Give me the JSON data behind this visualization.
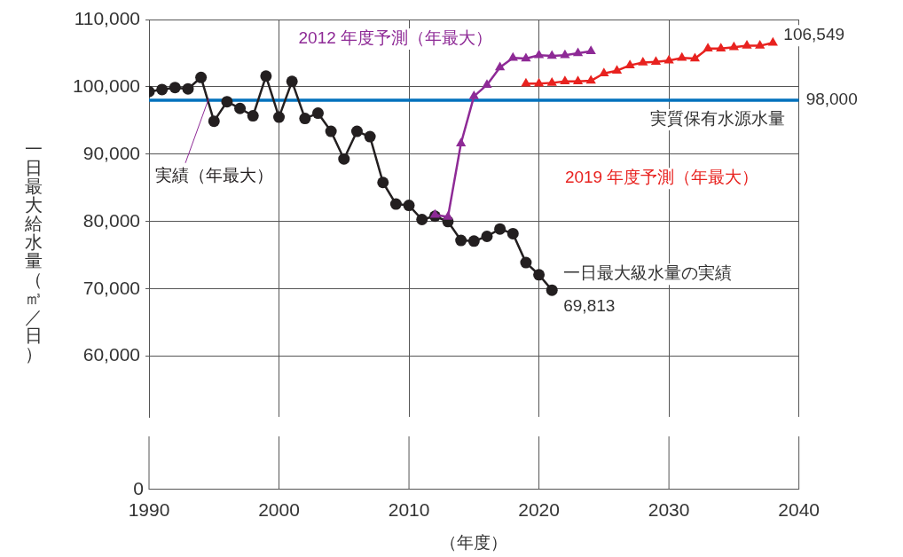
{
  "chart_data": {
    "type": "line",
    "ylabel": "一日最大給水量（㎥／日）",
    "xlabel": "（年度）",
    "xlim": [
      1990,
      2040
    ],
    "xticks": [
      1990,
      2000,
      2010,
      2020,
      2030,
      2040
    ],
    "ylim": [
      51000,
      110000
    ],
    "yticks": [
      {
        "value": 60000,
        "label": "60,000"
      },
      {
        "value": 70000,
        "label": "70,000"
      },
      {
        "value": 80000,
        "label": "80,000"
      },
      {
        "value": 90000,
        "label": "90,000"
      },
      {
        "value": 100000,
        "label": "100,000"
      },
      {
        "value": 110000,
        "label": "110,000"
      }
    ],
    "grid": true,
    "legend": false,
    "series": [
      {
        "name": "実績（年最大）",
        "color": "#231f20",
        "marker": "circle",
        "x": [
          1990,
          1991,
          1992,
          1993,
          1994,
          1995,
          1996,
          1997,
          1998,
          1999,
          2000,
          2001,
          2002,
          2003,
          2004,
          2005,
          2006,
          2007,
          2008,
          2009,
          2010,
          2011,
          2012,
          2013,
          2014,
          2015,
          2016,
          2017,
          2018,
          2019,
          2020,
          2021
        ],
        "values": [
          99300,
          99600,
          99900,
          99700,
          101400,
          94900,
          97800,
          96800,
          95700,
          101600,
          95500,
          100800,
          95300,
          96100,
          93400,
          89300,
          93400,
          92600,
          85800,
          82600,
          82400,
          80300,
          80800,
          80000,
          77200,
          77100,
          77800,
          78900,
          78200,
          73900,
          72100,
          69813
        ]
      },
      {
        "name": "2012 年度予測（年最大）",
        "color": "#8e2a96",
        "marker": "triangle",
        "x": [
          2012,
          2013,
          2014,
          2015,
          2016,
          2017,
          2018,
          2019,
          2020,
          2021,
          2022,
          2023,
          2024
        ],
        "values": [
          81000,
          80700,
          91600,
          98600,
          100300,
          102900,
          104300,
          104200,
          104700,
          104600,
          104700,
          105000,
          105300
        ]
      },
      {
        "name": "2019 年度予測（年最大）",
        "color": "#e8221f",
        "marker": "triangle",
        "x": [
          2019,
          2020,
          2021,
          2022,
          2023,
          2024,
          2025,
          2026,
          2027,
          2028,
          2029,
          2030,
          2031,
          2032,
          2033,
          2034,
          2035,
          2036,
          2037,
          2038
        ],
        "values": [
          100500,
          100500,
          100600,
          100800,
          100800,
          100900,
          102000,
          102400,
          103200,
          103600,
          103700,
          103900,
          104300,
          104200,
          105700,
          105700,
          105900,
          106100,
          106100,
          106549
        ]
      }
    ],
    "ref_lines": [
      {
        "axis": "y",
        "value": 98000,
        "label": "実質保有水源水量",
        "color": "#0071bc"
      }
    ],
    "annotations": [
      {
        "text": "69,813",
        "x": 2021,
        "y": 69813
      },
      {
        "text": "一日最大級水量の実績",
        "x": 2021,
        "y": 69813
      },
      {
        "text": "106,549",
        "x": 2038,
        "y": 106549
      },
      {
        "text": "98,000",
        "x": 2040,
        "y": 98000
      },
      "0"
    ]
  }
}
